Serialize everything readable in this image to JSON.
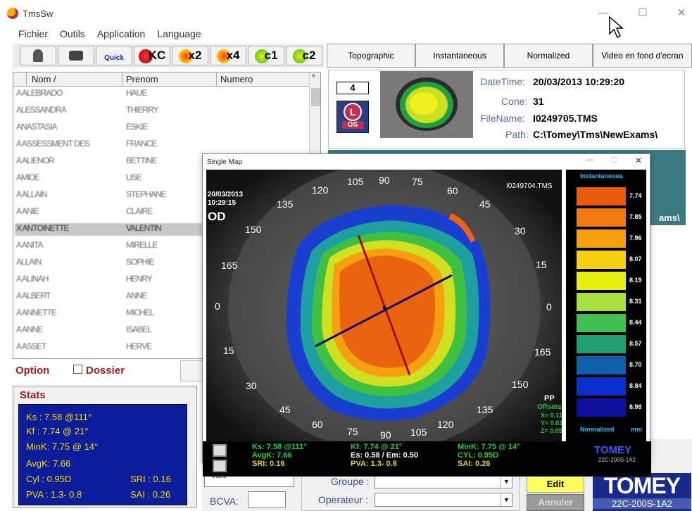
{
  "window": {
    "title": "TmsSw",
    "min": "—",
    "max": "☐",
    "close": "✕"
  },
  "menu": [
    "Fichier",
    "Outils",
    "Application",
    "Language"
  ],
  "toolbar": {
    "quick": "Quick",
    "kc": "KC",
    "x2": "x2",
    "x4": "x4",
    "c1": "c1",
    "c2": "c2"
  },
  "tabs": [
    "Topographic",
    "Instantaneous",
    "Normalized",
    "Video en fond d'ecran"
  ],
  "table": {
    "headers": [
      "Nom /",
      "Prenom",
      "Numero"
    ],
    "rows": [
      [
        "A ALEBRADO",
        "HAUE",
        ""
      ],
      [
        "ALESSANDRA",
        "THIERRY",
        ""
      ],
      [
        "ANASTASIA",
        "ESKIE",
        ""
      ],
      [
        "A ASSESSMENT DES",
        "FRANCE",
        ""
      ],
      [
        "A ALIENOR",
        "BETTINE",
        ""
      ],
      [
        "AMIDE",
        "LISE",
        ""
      ],
      [
        "A ALLAIN",
        "STEPHANE",
        ""
      ],
      [
        "A ANIE",
        "CLAIRE",
        ""
      ],
      [
        "X ANTOINETTE",
        "VALENTIN",
        ""
      ],
      [
        "A ANITA",
        "MIRELLE",
        ""
      ],
      [
        "ALLAIN",
        "SOPHIE",
        ""
      ],
      [
        "A ALINAH",
        "HENRY",
        ""
      ],
      [
        "A ALBERT",
        "ANNE",
        ""
      ],
      [
        "A ANNETTE",
        "MICHEL",
        ""
      ],
      [
        "A ANNE",
        "ISABEL",
        ""
      ],
      [
        "A ASSET",
        "HERVE",
        ""
      ]
    ]
  },
  "option": {
    "label": "Option",
    "dossier": "Dossier"
  },
  "stats": {
    "title": "Stats",
    "ks": "Ks    : 7.58 @111°",
    "kf": "Kf     : 7.74 @ 21°",
    "mink": "MinK: 7.75 @ 14°",
    "avgk": "AvgK: 7.66",
    "cyl": "Cyl    : 0.95D",
    "sri": "SRI : 0.16",
    "pva": "PVA  :  1.3-  0.8",
    "sai": "SAI : 0.26"
  },
  "info": {
    "exam_number": "4",
    "eye": "OS",
    "datetime_label": "DateTime:",
    "datetime": "20/03/2013 10:29:20",
    "cone_label": "Cone:",
    "cone": "31",
    "filename_label": "FileName:",
    "filename": "I0249705.TMS",
    "path_label": "Path:",
    "path": "C:\\Tomey\\Tms\\NewExams\\"
  },
  "teal_text": "ams\\",
  "form": {
    "groupe": "Groupe :",
    "operateur": "Operateur :",
    "bcva": "BCVA:",
    "edit": "Edit",
    "annuler": "Annuler",
    "vals_partial": "Vals"
  },
  "brand": {
    "name": "TOMEY",
    "model": "22C-200S-1A2"
  },
  "single_map": {
    "title": "Single Map",
    "date": "20/03/2013",
    "time": "10:29:15",
    "eye": "OD",
    "file": "I0249704.TMS",
    "angles": [
      "105",
      "90",
      "75",
      "120",
      "60",
      "135",
      "45",
      "150",
      "30",
      "165",
      "15",
      "0",
      "0",
      "15",
      "165",
      "30",
      "150",
      "45",
      "135",
      "60",
      "120",
      "75",
      "90",
      "105"
    ],
    "pp": "PP",
    "offsets": "Offsets",
    "x": "X= 0.11",
    "y": "Y= 0.01",
    "z": "Z= 0.05",
    "legend_title": "Instantaneous",
    "legend_footer": "Normalized",
    "legend_unit": "mm",
    "legend_values": [
      "7.74",
      "7.85",
      "7.96",
      "8.07",
      "8.19",
      "8.31",
      "8.44",
      "8.57",
      "8.70",
      "8.84",
      "8.98"
    ],
    "legend_colors": [
      "#e85a0a",
      "#f07a10",
      "#f5a00c",
      "#f8d010",
      "#e8f010",
      "#a8e040",
      "#40c050",
      "#20a070",
      "#1060b0",
      "#0a30d0",
      "#1010a0"
    ],
    "bottom": {
      "ks": "Ks: 7.58 @111°",
      "avgk": "AvgK: 7.66",
      "sri": "SRI: 0.16",
      "kf": "Kf: 7.74 @ 21°",
      "es": "Es: 0.58 / Em: 0.50",
      "pva": "PVA:  1.3-  0.8",
      "mink": "MinK: 7.75 @ 14°",
      "cyl": "CYL:  0.95D",
      "sai": "SAI: 0.26",
      "brand": "TOMEY",
      "model": "22C-200S-1A2"
    }
  }
}
